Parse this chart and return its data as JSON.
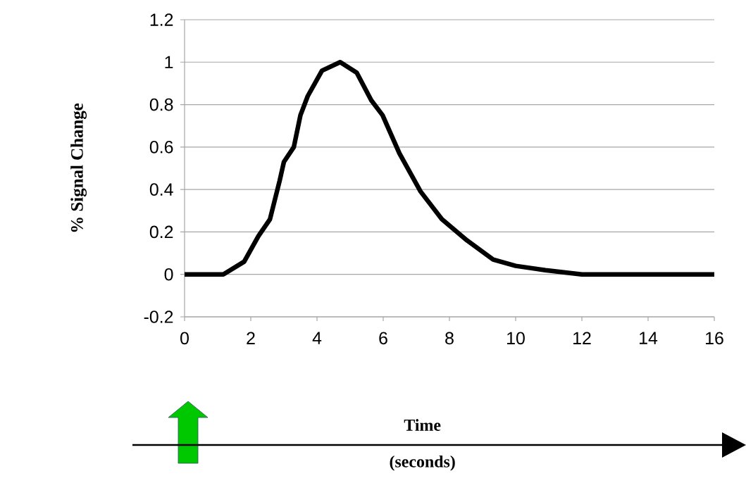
{
  "chart_data": {
    "type": "line",
    "xlabel": "Time (seconds)",
    "ylabel": "% Signal Change",
    "x": [
      0,
      1.17,
      1.8,
      2.23,
      2.58,
      2.87,
      3.0,
      3.3,
      3.5,
      3.72,
      4.15,
      4.7,
      5.2,
      5.64,
      5.98,
      6.49,
      7.13,
      7.77,
      8.53,
      9.32,
      10.0,
      10.9,
      12.0,
      16
    ],
    "values": [
      0,
      0,
      0.06,
      0.18,
      0.26,
      0.44,
      0.53,
      0.6,
      0.75,
      0.84,
      0.96,
      1.0,
      0.95,
      0.82,
      0.75,
      0.57,
      0.39,
      0.26,
      0.16,
      0.07,
      0.04,
      0.02,
      0,
      0
    ],
    "color": "#000000",
    "xlim": [
      0,
      16
    ],
    "xticks": [
      0,
      2,
      4,
      6,
      8,
      10,
      12,
      14,
      16
    ],
    "ylim": [
      -0.2,
      1.2
    ],
    "yticks": [
      -0.2,
      0,
      0.2,
      0.4,
      0.6,
      0.8,
      1,
      1.2
    ],
    "grid": "y",
    "marker": "none",
    "line_style": "solid"
  }
}
